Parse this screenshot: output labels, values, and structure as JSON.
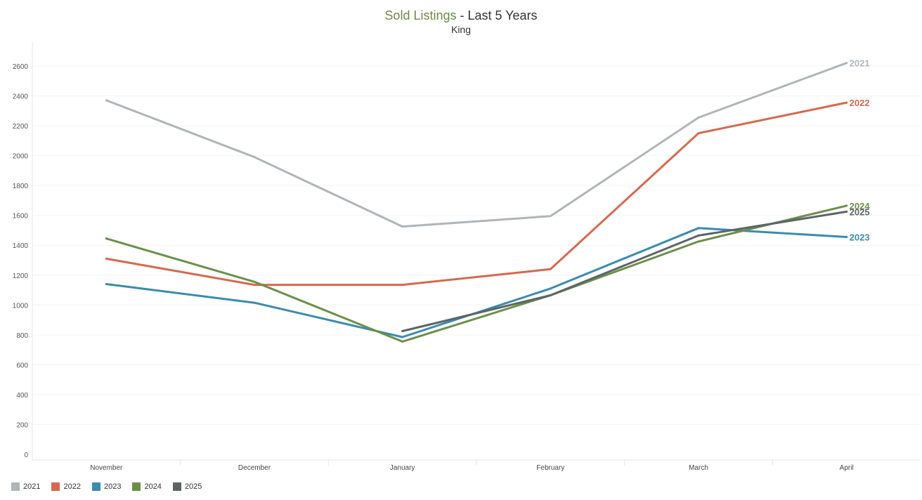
{
  "title": {
    "main": "Sold Listings",
    "rest": " - Last 5 Years",
    "subtitle": "King"
  },
  "chart_data": {
    "type": "line",
    "categories": [
      "November",
      "December",
      "January",
      "February",
      "March",
      "April"
    ],
    "y_ticks": [
      "0",
      "200",
      "400",
      "600",
      "800",
      "1000",
      "1200",
      "1400",
      "1600",
      "1800",
      "2000",
      "2200",
      "2400",
      "2600"
    ],
    "ylim": [
      0,
      2700
    ],
    "grid": true,
    "legend_position": "bottom-left",
    "series": [
      {
        "name": "2021",
        "color": "#b0b5b9",
        "values": [
          2370,
          1990,
          1525,
          1595,
          2255,
          2620
        ]
      },
      {
        "name": "2022",
        "color": "#d4694f",
        "values": [
          1310,
          1135,
          1135,
          1240,
          2150,
          2355
        ]
      },
      {
        "name": "2023",
        "color": "#3a8cad",
        "values": [
          1140,
          1015,
          785,
          1110,
          1515,
          1455
        ]
      },
      {
        "name": "2024",
        "color": "#6b8f4a",
        "values": [
          1445,
          1155,
          755,
          1065,
          1425,
          1665
        ]
      },
      {
        "name": "2025",
        "color": "#5e6466",
        "values": [
          null,
          null,
          825,
          1065,
          1465,
          1625
        ]
      }
    ]
  }
}
